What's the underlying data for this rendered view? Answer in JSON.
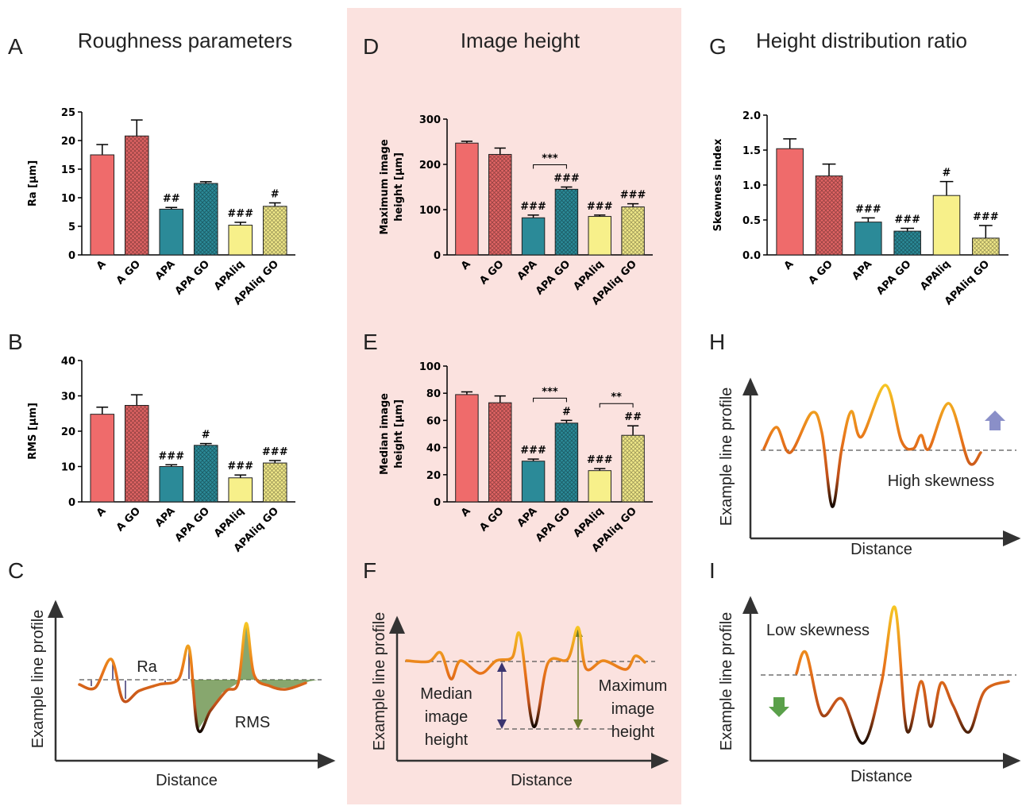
{
  "columns": [
    {
      "title": "Roughness parameters"
    },
    {
      "title": "Image height"
    },
    {
      "title": "Height distribution ratio"
    }
  ],
  "chart_data": [
    {
      "type": "bar",
      "panel": "A",
      "ylabel": [
        "Ra [µm]"
      ],
      "categories": [
        "A",
        "A GO",
        "APA",
        "APA GO",
        "APAliq",
        "APAliq GO"
      ],
      "values": [
        17.5,
        20.8,
        8.0,
        12.5,
        5.2,
        8.5
      ],
      "errors": [
        1.8,
        2.8,
        0.3,
        0.3,
        0.5,
        0.6
      ],
      "significance": [
        null,
        null,
        "##",
        null,
        "###",
        "#"
      ],
      "colors": [
        "#ef6b6b",
        "#e06464",
        "#2b8a98",
        "#2b8a98",
        "#f7f08a",
        "#f0e888"
      ],
      "hatched": [
        false,
        true,
        false,
        true,
        false,
        true
      ],
      "ylim": [
        0,
        25
      ],
      "yticks": [
        0,
        5,
        10,
        15,
        20,
        25
      ]
    },
    {
      "type": "bar",
      "panel": "B",
      "ylabel": [
        "RMS [µm]"
      ],
      "categories": [
        "A",
        "A GO",
        "APA",
        "APA GO",
        "APAliq",
        "APAliq GO"
      ],
      "values": [
        24.8,
        27.3,
        10.0,
        16.0,
        6.8,
        11.0
      ],
      "errors": [
        2.0,
        3.0,
        0.5,
        0.5,
        0.8,
        0.7
      ],
      "significance": [
        null,
        null,
        "###",
        "#",
        "###",
        "###"
      ],
      "colors": [
        "#ef6b6b",
        "#e06464",
        "#2b8a98",
        "#2b8a98",
        "#f7f08a",
        "#f0e888"
      ],
      "hatched": [
        false,
        true,
        false,
        true,
        false,
        true
      ],
      "ylim": [
        0,
        40
      ],
      "yticks": [
        0,
        10,
        20,
        30,
        40
      ]
    },
    {
      "type": "bar",
      "panel": "D",
      "ylabel": [
        "Maximum image",
        "height [µm]"
      ],
      "categories": [
        "A",
        "A GO",
        "APA",
        "APA GO",
        "APAliq",
        "APAliq GO"
      ],
      "values": [
        247,
        222,
        82,
        145,
        85,
        106
      ],
      "errors": [
        4,
        14,
        6,
        5,
        3,
        7
      ],
      "significance": [
        null,
        null,
        "###",
        "###",
        "###",
        "###"
      ],
      "brackets": [
        {
          "from": 2,
          "to": 3,
          "label": "***"
        }
      ],
      "colors": [
        "#ef6b6b",
        "#e06464",
        "#2b8a98",
        "#2b8a98",
        "#f7f08a",
        "#f0e888"
      ],
      "hatched": [
        false,
        true,
        false,
        true,
        false,
        true
      ],
      "ylim": [
        0,
        300
      ],
      "yticks": [
        0,
        100,
        200,
        300
      ]
    },
    {
      "type": "bar",
      "panel": "E",
      "ylabel": [
        "Median image",
        "height [µm]"
      ],
      "categories": [
        "A",
        "A GO",
        "APA",
        "APA GO",
        "APAliq",
        "APAliq GO"
      ],
      "values": [
        79,
        73,
        30,
        58,
        23,
        49
      ],
      "errors": [
        2,
        5,
        1.5,
        2,
        1.5,
        7
      ],
      "significance": [
        null,
        null,
        "###",
        "#",
        "###",
        "##"
      ],
      "brackets": [
        {
          "from": 2,
          "to": 3,
          "label": "***"
        },
        {
          "from": 4,
          "to": 5,
          "label": "**"
        }
      ],
      "colors": [
        "#ef6b6b",
        "#e06464",
        "#2b8a98",
        "#2b8a98",
        "#f7f08a",
        "#f0e888"
      ],
      "hatched": [
        false,
        true,
        false,
        true,
        false,
        true
      ],
      "ylim": [
        0,
        100
      ],
      "yticks": [
        0,
        20,
        40,
        60,
        80,
        100
      ]
    },
    {
      "type": "bar",
      "panel": "G",
      "ylabel": [
        "Skewness index"
      ],
      "categories": [
        "A",
        "A GO",
        "APA",
        "APA GO",
        "APAliq",
        "APAliq GO"
      ],
      "values": [
        1.52,
        1.13,
        0.47,
        0.34,
        0.85,
        0.24
      ],
      "errors": [
        0.14,
        0.17,
        0.06,
        0.04,
        0.2,
        0.18
      ],
      "significance": [
        null,
        null,
        "###",
        "###",
        "#",
        "###"
      ],
      "colors": [
        "#ef6b6b",
        "#e06464",
        "#2b8a98",
        "#2b8a98",
        "#f7f08a",
        "#f0e888"
      ],
      "hatched": [
        false,
        true,
        false,
        true,
        false,
        true
      ],
      "ylim": [
        0,
        2
      ],
      "yticks": [
        {
          "value": 0,
          "label": "0.0"
        },
        0.5,
        {
          "value": 1,
          "label": "1.0"
        },
        1.5,
        {
          "value": 2,
          "label": "2.0"
        }
      ]
    }
  ],
  "diagrams": [
    {
      "panel": "C",
      "ylabel": "Example line profile",
      "xlabel": "Distance",
      "annotations": [
        [
          "Ra"
        ],
        [
          "RMS"
        ]
      ]
    },
    {
      "panel": "F",
      "ylabel": "Example line profile",
      "xlabel": "Distance",
      "annotations": [
        [
          "Median",
          "image",
          "height"
        ],
        [
          "Maximum",
          "image",
          "height"
        ]
      ]
    },
    {
      "panel": "H",
      "ylabel": "Example line profile",
      "xlabel": "Distance",
      "annotations": [
        [
          "High skewness"
        ]
      ]
    },
    {
      "panel": "I",
      "ylabel": "Example line profile",
      "xlabel": "Distance",
      "annotations": [
        [
          "Low skewness"
        ]
      ]
    }
  ]
}
